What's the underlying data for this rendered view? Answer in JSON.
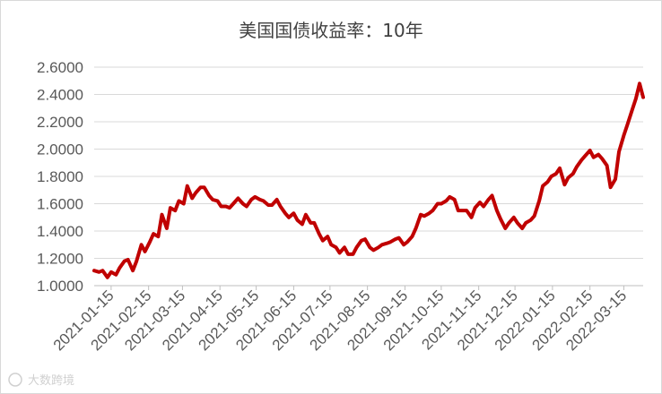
{
  "chart_data": {
    "type": "line",
    "title": "美国国债收益率：10年",
    "xlabel": "",
    "ylabel": "",
    "ylim": [
      1.0,
      2.6
    ],
    "yticks": [
      "1.0000",
      "1.2000",
      "1.4000",
      "1.6000",
      "1.8000",
      "2.0000",
      "2.2000",
      "2.4000",
      "2.6000"
    ],
    "xticks": [
      "2021-01-15",
      "2021-02-15",
      "2021-03-15",
      "2021-04-15",
      "2021-05-15",
      "2021-06-15",
      "2021-07-15",
      "2021-08-15",
      "2021-09-15",
      "2021-10-15",
      "2021-11-15",
      "2021-12-15",
      "2022-01-15",
      "2022-02-15",
      "2022-03-15"
    ],
    "grid": true,
    "legend": "none",
    "series_color": "#c00000",
    "series": [
      {
        "x": [
          "2021-01-01",
          "2021-01-05",
          "2021-01-08",
          "2021-01-12",
          "2021-01-15",
          "2021-01-19",
          "2021-01-22",
          "2021-01-26",
          "2021-01-29",
          "2021-02-02",
          "2021-02-05",
          "2021-02-09",
          "2021-02-12",
          "2021-02-16",
          "2021-02-19",
          "2021-02-23",
          "2021-02-26",
          "2021-03-02",
          "2021-03-05",
          "2021-03-09",
          "2021-03-12",
          "2021-03-16",
          "2021-03-19",
          "2021-03-23",
          "2021-03-26",
          "2021-03-30",
          "2021-04-02",
          "2021-04-06",
          "2021-04-09",
          "2021-04-13",
          "2021-04-16",
          "2021-04-20",
          "2021-04-23",
          "2021-04-27",
          "2021-04-30",
          "2021-05-04",
          "2021-05-07",
          "2021-05-11",
          "2021-05-14",
          "2021-05-18",
          "2021-05-21",
          "2021-05-25",
          "2021-05-28",
          "2021-06-01",
          "2021-06-04",
          "2021-06-08",
          "2021-06-11",
          "2021-06-15",
          "2021-06-18",
          "2021-06-22",
          "2021-06-25",
          "2021-06-29",
          "2021-07-02",
          "2021-07-06",
          "2021-07-09",
          "2021-07-13",
          "2021-07-16",
          "2021-07-20",
          "2021-07-23",
          "2021-07-27",
          "2021-07-30",
          "2021-08-03",
          "2021-08-06",
          "2021-08-10",
          "2021-08-13",
          "2021-08-17",
          "2021-08-20",
          "2021-08-24",
          "2021-08-27",
          "2021-08-31",
          "2021-09-03",
          "2021-09-07",
          "2021-09-10",
          "2021-09-14",
          "2021-09-17",
          "2021-09-21",
          "2021-09-24",
          "2021-09-28",
          "2021-10-01",
          "2021-10-05",
          "2021-10-08",
          "2021-10-12",
          "2021-10-15",
          "2021-10-19",
          "2021-10-22",
          "2021-10-26",
          "2021-10-29",
          "2021-11-02",
          "2021-11-05",
          "2021-11-09",
          "2021-11-12",
          "2021-11-16",
          "2021-11-19",
          "2021-11-23",
          "2021-11-26",
          "2021-11-30",
          "2021-12-03",
          "2021-12-07",
          "2021-12-10",
          "2021-12-14",
          "2021-12-17",
          "2021-12-21",
          "2021-12-24",
          "2021-12-28",
          "2021-12-31",
          "2022-01-04",
          "2022-01-07",
          "2022-01-11",
          "2022-01-14",
          "2022-01-18",
          "2022-01-21",
          "2022-01-25",
          "2022-01-28",
          "2022-02-01",
          "2022-02-04",
          "2022-02-08",
          "2022-02-11",
          "2022-02-15",
          "2022-02-18",
          "2022-02-22",
          "2022-02-25",
          "2022-03-01",
          "2022-03-04",
          "2022-03-08",
          "2022-03-11",
          "2022-03-15",
          "2022-03-18",
          "2022-03-22",
          "2022-03-25",
          "2022-03-28",
          "2022-03-31"
        ],
        "values": [
          1.11,
          1.1,
          1.11,
          1.06,
          1.1,
          1.08,
          1.13,
          1.18,
          1.19,
          1.11,
          1.18,
          1.3,
          1.25,
          1.32,
          1.38,
          1.36,
          1.52,
          1.42,
          1.57,
          1.55,
          1.62,
          1.6,
          1.73,
          1.64,
          1.68,
          1.72,
          1.72,
          1.66,
          1.63,
          1.62,
          1.58,
          1.58,
          1.57,
          1.61,
          1.64,
          1.6,
          1.58,
          1.63,
          1.65,
          1.63,
          1.62,
          1.59,
          1.59,
          1.63,
          1.58,
          1.53,
          1.5,
          1.53,
          1.48,
          1.45,
          1.52,
          1.46,
          1.46,
          1.38,
          1.33,
          1.36,
          1.3,
          1.28,
          1.24,
          1.28,
          1.23,
          1.23,
          1.28,
          1.33,
          1.34,
          1.28,
          1.26,
          1.28,
          1.3,
          1.31,
          1.32,
          1.34,
          1.35,
          1.3,
          1.32,
          1.36,
          1.42,
          1.52,
          1.51,
          1.53,
          1.55,
          1.6,
          1.6,
          1.62,
          1.65,
          1.63,
          1.55,
          1.55,
          1.55,
          1.5,
          1.57,
          1.61,
          1.58,
          1.63,
          1.66,
          1.55,
          1.49,
          1.42,
          1.46,
          1.5,
          1.46,
          1.42,
          1.46,
          1.48,
          1.51,
          1.62,
          1.73,
          1.76,
          1.8,
          1.82,
          1.86,
          1.74,
          1.79,
          1.82,
          1.87,
          1.92,
          1.95,
          1.99,
          1.94,
          1.96,
          1.93,
          1.88,
          1.72,
          1.78,
          1.98,
          2.1,
          2.18,
          2.29,
          2.37,
          2.48,
          2.38
        ]
      }
    ]
  },
  "watermark": "大数跨境"
}
